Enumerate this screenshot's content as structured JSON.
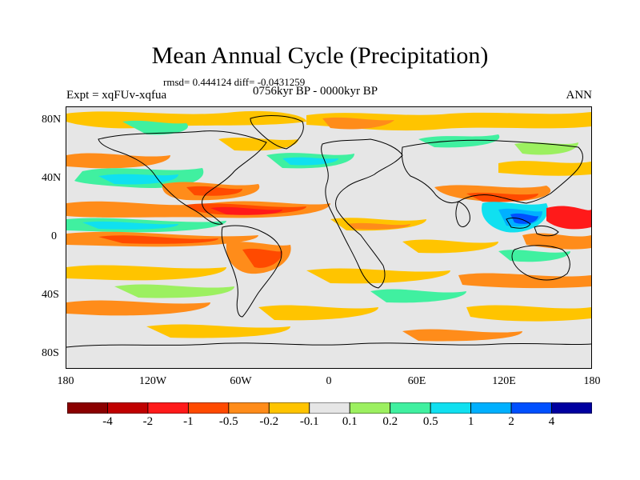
{
  "title": "Mean Annual Cycle (Precipitation)",
  "stats": "rmsd= 0.444124 diff= -0.0431259",
  "experiment": "Expt = xqFUv-xqfua",
  "period": "0756kyr BP - 0000kyr BP",
  "season": "ANN",
  "lat_labels": [
    "80N",
    "40N",
    "0",
    "40S",
    "80S"
  ],
  "lon_labels": [
    "180",
    "120W",
    "60W",
    "0",
    "60E",
    "120E",
    "180"
  ],
  "colorbar": {
    "colors": [
      "#8b0000",
      "#c00000",
      "#ff1a1a",
      "#ff4a00",
      "#ff8c1a",
      "#ffc400",
      "#e6e6e6",
      "#9cf060",
      "#40f0a0",
      "#10e0f0",
      "#00b0ff",
      "#0050ff",
      "#0000a0"
    ],
    "labels": [
      "-4",
      "-2",
      "-1",
      "-0.5",
      "-0.2",
      "-0.1",
      "0.1",
      "0.2",
      "0.5",
      "1",
      "2",
      "4"
    ]
  }
}
